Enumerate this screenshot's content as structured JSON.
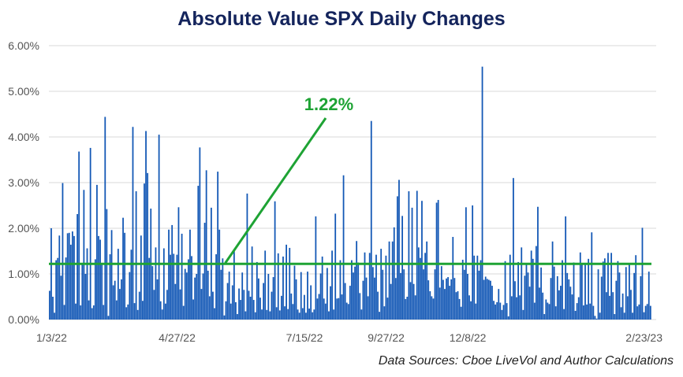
{
  "chart_data": {
    "type": "bar",
    "title": "Absolute Value SPX Daily Changes",
    "y_unit": "percent",
    "ylim": [
      0,
      6
    ],
    "y_ticks": [
      0,
      1,
      2,
      3,
      4,
      5,
      6
    ],
    "y_tick_labels": [
      "0.00%",
      "1.00%",
      "2.00%",
      "3.00%",
      "4.00%",
      "5.00%",
      "6.00%"
    ],
    "x_tick_labels": [
      "1/3/22",
      "4/27/22",
      "7/15/22",
      "9/27/22",
      "12/8/22",
      "2/23/23"
    ],
    "x_tick_positions": [
      0,
      78,
      156,
      206,
      256,
      306
    ],
    "grid": "horizontal",
    "legend": "none",
    "reference_line": {
      "value": 1.22,
      "label": "1.22%",
      "color": "#1ea334"
    },
    "bar_color": "#1257b5",
    "values": [
      0.63,
      2.0,
      0.5,
      0.15,
      1.3,
      1.35,
      1.84,
      0.96,
      2.99,
      0.32,
      1.36,
      1.89,
      1.9,
      1.64,
      1.93,
      1.83,
      0.35,
      2.31,
      3.68,
      0.31,
      1.22,
      2.84,
      1.0,
      1.56,
      0.42,
      3.76,
      0.25,
      0.31,
      1.32,
      2.95,
      1.83,
      1.75,
      1.21,
      0.32,
      4.44,
      2.42,
      0.08,
      1.43,
      1.96,
      0.75,
      0.85,
      0.42,
      1.55,
      0.67,
      0.88,
      2.23,
      1.9,
      0.27,
      0.33,
      1.04,
      1.53,
      4.22,
      0.36,
      2.81,
      0.21,
      0.61,
      1.84,
      0.41,
      2.98,
      4.13,
      3.21,
      1.35,
      2.43,
      1.17,
      0.65,
      1.58,
      0.88,
      4.05,
      0.4,
      0.22,
      1.56,
      0.35,
      0.65,
      1.97,
      1.42,
      2.07,
      1.44,
      0.78,
      1.42,
      2.46,
      0.66,
      1.88,
      0.3,
      1.11,
      1.03,
      1.32,
      1.97,
      1.39,
      0.44,
      0.92,
      1.0,
      2.93,
      3.77,
      0.67,
      1.01,
      2.12,
      3.27,
      1.07,
      0.51,
      2.45,
      0.61,
      0.25,
      1.43,
      3.24,
      1.97,
      1.09,
      1.34,
      0.09,
      0.4,
      0.8,
      1.05,
      0.35,
      0.75,
      1.5,
      0.38,
      0.12,
      0.68,
      0.43,
      1.03,
      0.65,
      0.18,
      2.76,
      0.63,
      0.5,
      1.6,
      0.43,
      0.16,
      1.26,
      0.9,
      0.48,
      0.22,
      0.8,
      1.51,
      0.21,
      1.0,
      0.18,
      0.61,
      0.93,
      2.59,
      0.27,
      1.45,
      0.2,
      0.52,
      1.38,
      0.29,
      1.64,
      0.23,
      1.57,
      0.57,
      0.34,
      1.18,
      0.88,
      0.22,
      0.15,
      1.04,
      0.25,
      0.54,
      0.15,
      1.05,
      0.24,
      0.75,
      0.16,
      0.22,
      2.26,
      0.46,
      0.56,
      1.01,
      1.38,
      0.46,
      0.35,
      1.13,
      0.18,
      0.73,
      1.51,
      0.22,
      2.32,
      0.46,
      0.47,
      1.3,
      0.55,
      3.16,
      0.8,
      0.37,
      0.34,
      0.74,
      1.3,
      1.03,
      1.16,
      1.72,
      1.25,
      0.58,
      0.22,
      0.85,
      1.47,
      0.92,
      0.51,
      1.46,
      4.35,
      1.15,
      0.92,
      1.42,
      0.61,
      0.17,
      1.55,
      1.09,
      0.29,
      1.4,
      0.48,
      1.71,
      0.78,
      1.71,
      2.02,
      0.91,
      2.7,
      3.06,
      1.02,
      2.27,
      1.1,
      0.45,
      0.5,
      2.81,
      0.82,
      2.45,
      0.78,
      0.53,
      2.82,
      1.58,
      1.35,
      2.6,
      1.1,
      1.46,
      1.71,
      0.86,
      0.62,
      0.51,
      0.46,
      1.1,
      2.56,
      2.62,
      0.7,
      1.17,
      0.87,
      0.67,
      0.9,
      0.93,
      0.74,
      0.88,
      1.81,
      0.91,
      0.6,
      0.62,
      0.45,
      0.28,
      1.31,
      1.09,
      2.46,
      1.0,
      0.53,
      0.4,
      2.5,
      1.4,
      0.35,
      1.4,
      1.07,
      1.3,
      5.54,
      0.87,
      0.94,
      0.89,
      0.87,
      0.85,
      0.74,
      0.41,
      0.33,
      0.38,
      0.67,
      0.37,
      0.21,
      0.32,
      1.28,
      0.36,
      0.07,
      1.42,
      0.51,
      3.1,
      0.84,
      0.49,
      1.26,
      0.53,
      1.58,
      0.21,
      0.96,
      1.24,
      1.03,
      0.72,
      1.51,
      1.33,
      0.37,
      1.61,
      2.47,
      0.7,
      1.14,
      0.59,
      0.12,
      0.44,
      0.37,
      0.34,
      0.91,
      1.71,
      1.16,
      0.29,
      0.95,
      0.64,
      0.74,
      1.3,
      0.23,
      2.26,
      1.02,
      0.88,
      0.72,
      0.55,
      1.25,
      0.19,
      0.36,
      0.49,
      1.47,
      1.22,
      0.31,
      1.22,
      0.33,
      1.33,
      0.35,
      1.91,
      0.3,
      0.08,
      0.02,
      1.1,
      0.15,
      0.94,
      1.27,
      1.34,
      0.6,
      1.46,
      0.52,
      1.46,
      0.6,
      0.12,
      0.85,
      1.28,
      1.03,
      0.27,
      0.57,
      0.15,
      1.15,
      0.51,
      1.21,
      0.65,
      0.15,
      1.02,
      1.41,
      0.29,
      0.33,
      0.95,
      2.01,
      0.16,
      0.3,
      0.34,
      1.05,
      0.3
    ]
  },
  "source_note": "Data Sources: Cboe LiveVol and Author Calculations"
}
